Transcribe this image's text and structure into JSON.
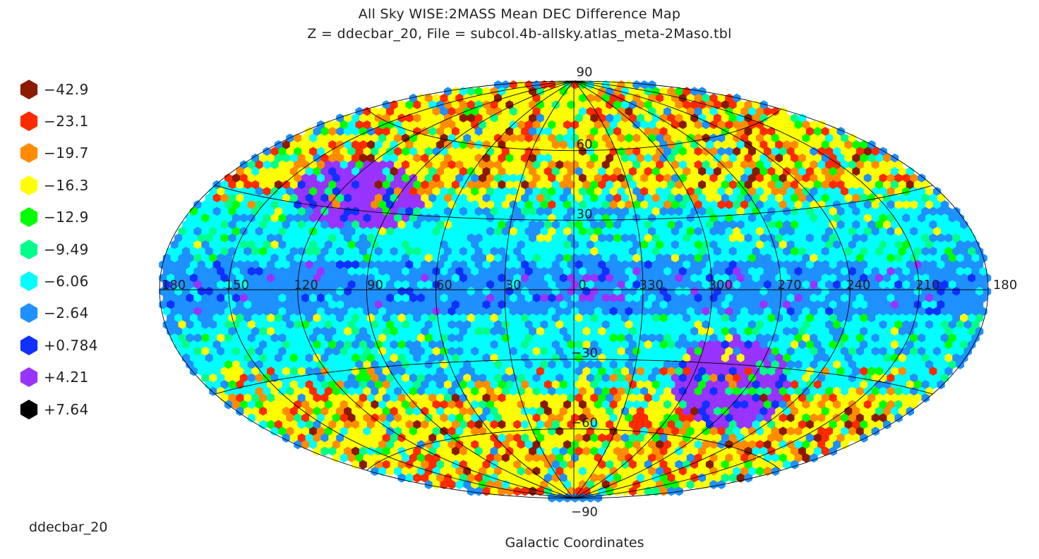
{
  "title": "All Sky WISE:2MASS Mean DEC Difference Map",
  "subtitle": "Z = ddecbar_20, File = subcol.4b-allsky.atlas_meta-2Maso.tbl",
  "field_label": "ddecbar_20",
  "coord_label": "Galactic Coordinates",
  "legend": [
    {
      "label": "−42.9",
      "color": "#8b1a00"
    },
    {
      "label": "−23.1",
      "color": "#ff2a00"
    },
    {
      "label": "−19.7",
      "color": "#ff8c00"
    },
    {
      "label": "−16.3",
      "color": "#ffff00"
    },
    {
      "label": "−12.9",
      "color": "#00ff00"
    },
    {
      "label": "−9.49",
      "color": "#00ff88"
    },
    {
      "label": "−6.06",
      "color": "#00ffff"
    },
    {
      "label": "−2.64",
      "color": "#1e90ff"
    },
    {
      "label": "+0.784",
      "color": "#1030ff"
    },
    {
      "label": "+4.21",
      "color": "#9933ff"
    },
    {
      "label": "+7.64",
      "color": "#000000"
    }
  ],
  "map": {
    "projection": "aitoff",
    "longitude_labels": [
      "180",
      "150",
      "120",
      "90",
      "60",
      "30",
      "0",
      "330",
      "300",
      "270",
      "240",
      "210",
      "180"
    ],
    "latitude_labels": [
      "90",
      "60",
      "30",
      "-30",
      "-60",
      "-90"
    ]
  }
}
